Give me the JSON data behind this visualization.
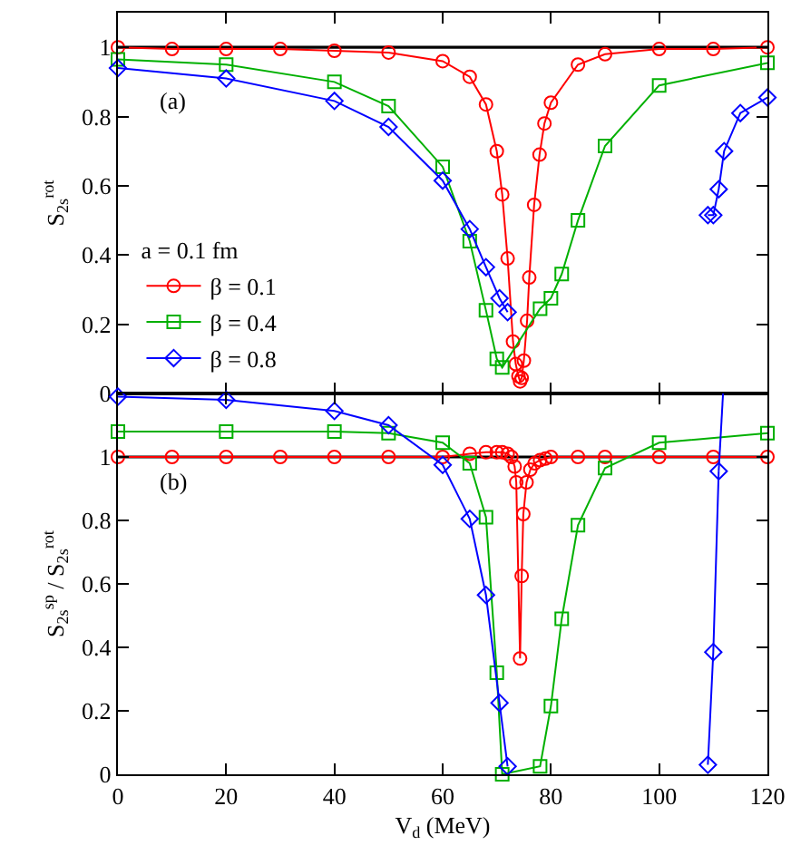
{
  "chart_data": [
    {
      "type": "line",
      "xlim": [
        0,
        120
      ],
      "xticks": [
        0,
        20,
        40,
        60,
        80,
        100,
        120
      ],
      "ylim": [
        0,
        1.1
      ],
      "yticks": [
        0,
        0.2,
        0.4,
        0.6,
        0.8,
        1
      ],
      "ylabel": "S$_{2s}$$^{rot}$",
      "tick_labels": "y",
      "legend": "bottom left",
      "legend_title": "a = 0.1 fm",
      "line_style": "solid",
      "annotations": [
        "(a)"
      ],
      "ref_lines": [
        {
          "axis": "y",
          "value": 1,
          "color": "#000000"
        }
      ],
      "series": [
        {
          "name": "β = 0.1",
          "color": "#ff0000",
          "marker": "circle",
          "x": [
            0,
            10,
            20,
            30,
            40,
            50,
            60,
            65,
            68,
            70,
            71,
            72,
            73,
            73.5,
            74,
            74.3,
            74.6,
            75,
            75.6,
            76,
            76.9,
            77.9,
            78.8,
            80,
            85,
            90,
            100,
            110,
            120
          ],
          "values": [
            1.0,
            0.995,
            0.995,
            0.995,
            0.99,
            0.985,
            0.96,
            0.915,
            0.835,
            0.7,
            0.575,
            0.39,
            0.15,
            0.085,
            0.05,
            0.035,
            0.045,
            0.095,
            0.21,
            0.335,
            0.545,
            0.69,
            0.78,
            0.84,
            0.95,
            0.98,
            0.995,
            0.995,
            1.0
          ]
        },
        {
          "name": "β = 0.4",
          "color": "#00b000",
          "marker": "square",
          "x": [
            0,
            20,
            40,
            50,
            60,
            65,
            68,
            70,
            71,
            78,
            80,
            82,
            85,
            90,
            100,
            120
          ],
          "values": [
            0.965,
            0.95,
            0.9,
            0.83,
            0.655,
            0.44,
            0.24,
            0.1,
            0.075,
            0.245,
            0.275,
            0.345,
            0.5,
            0.715,
            0.89,
            0.955
          ]
        },
        {
          "name": "β = 0.8",
          "color": "#0000ff",
          "marker": "diamond",
          "x": [
            0,
            20,
            40,
            50,
            60,
            65,
            68,
            70.5,
            72,
            90,
            109,
            110,
            111,
            112,
            115,
            120
          ],
          "values": [
            0.94,
            0.91,
            0.845,
            0.77,
            0.615,
            0.475,
            0.365,
            0.275,
            0.235,
            null,
            0.515,
            0.515,
            0.59,
            0.7,
            0.81,
            0.855
          ]
        }
      ]
    },
    {
      "type": "line",
      "xlim": [
        0,
        120
      ],
      "xticks": [
        0,
        20,
        40,
        60,
        80,
        100,
        120
      ],
      "ylim": [
        0,
        1.2
      ],
      "yticks": [
        0,
        0.2,
        0.4,
        0.6,
        0.8,
        1
      ],
      "xlabel": "V$_{d}$ (MeV)",
      "ylabel": "S$_{2s}$$^{sp}$ / S$_{2s}$$^{rot}$",
      "line_style": "solid",
      "annotations": [
        "(b)"
      ],
      "ref_lines": [
        {
          "axis": "y",
          "value": 1,
          "color": "#000000"
        }
      ],
      "series": [
        {
          "color": "#ff0000",
          "marker": "circle",
          "x": [
            0,
            10,
            20,
            30,
            40,
            50,
            60,
            65,
            68,
            70,
            71,
            72,
            72.7,
            73.3,
            73.6,
            74.3,
            74.6,
            74.9,
            75.5,
            76.2,
            77,
            78,
            79,
            80,
            85,
            90,
            100,
            110,
            120
          ],
          "values": [
            1.0,
            1.0,
            1.0,
            1.0,
            1.0,
            1.0,
            1.0,
            1.01,
            1.015,
            1.015,
            1.015,
            1.01,
            1.0,
            0.97,
            0.92,
            0.365,
            0.625,
            0.82,
            0.92,
            0.96,
            0.98,
            0.99,
            0.995,
            1.0,
            1.0,
            1.0,
            1.0,
            1.0,
            1.0
          ]
        },
        {
          "color": "#00b000",
          "marker": "square",
          "x": [
            0,
            20,
            40,
            50,
            60,
            65,
            68,
            70,
            71,
            78,
            80,
            82,
            85,
            90,
            100,
            120
          ],
          "values": [
            1.08,
            1.08,
            1.08,
            1.075,
            1.045,
            0.98,
            0.81,
            0.32,
            0.0,
            0.025,
            0.215,
            0.49,
            0.785,
            0.965,
            1.045,
            1.075
          ]
        },
        {
          "color": "#0000ff",
          "marker": "diamond",
          "x": [
            0,
            20,
            40,
            50,
            60,
            65,
            68,
            70.5,
            72,
            90,
            109,
            110,
            111
          ],
          "values": [
            1.19,
            1.18,
            1.145,
            1.1,
            0.975,
            0.805,
            0.565,
            0.225,
            0.025,
            null,
            0.03,
            0.385,
            0.955
          ]
        },
        {
          "color": "#0000ff",
          "marker": "none",
          "x": [
            111,
            111.8
          ],
          "values": [
            0.955,
            1.2
          ]
        }
      ]
    }
  ]
}
